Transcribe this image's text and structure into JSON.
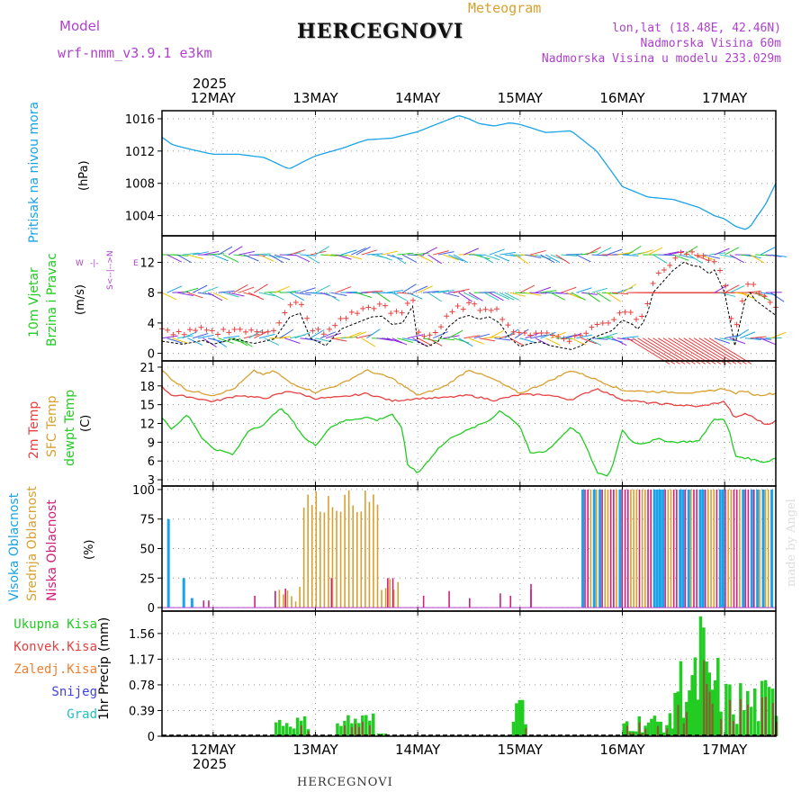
{
  "header": {
    "model_label": "Model",
    "model_name": "wrf-nmm_v3.9.1 e3km",
    "title": "HERCEGNOVI",
    "subtitle": "Meteogram",
    "coords": "lon,lat (18.48E, 42.46N)",
    "altitude": "Nadmorska Visina 60m",
    "model_altitude": "Nadmorska Visina u modelu 233.029m",
    "footer_title": "HERCEGNOVI",
    "credit": "made by Angel",
    "year": "2025"
  },
  "colors": {
    "pressure": "#1aa3e8",
    "wind_speed": "#000000",
    "t2m": "#e84040",
    "sfc": "#d8a030",
    "dewpt": "#22cc22",
    "cloud_high": "#1aa3e8",
    "cloud_mid": "#d8a030",
    "cloud_low": "#d0207a",
    "precip_total": "#22cc22",
    "precip_conv": "#e84040",
    "precip_frozen": "#f08030",
    "precip_snow": "#4040e0",
    "precip_hail": "#20c0c0",
    "wind_panel_label": "#22cc22",
    "compass": "#b040d0"
  },
  "chart_data": {
    "type": "meteogram",
    "time_axis": {
      "unit": "day",
      "start": 11.5,
      "end": 17.5,
      "day_labels": [
        "12MAY",
        "13MAY",
        "14MAY",
        "15MAY",
        "16MAY",
        "17MAY"
      ],
      "day_positions": [
        12,
        13,
        14,
        15,
        16,
        17
      ]
    },
    "panels": [
      {
        "id": "pressure",
        "ylabel": "Pritisak na nivou mora",
        "unit": "(hPa)",
        "yticks": [
          1004,
          1008,
          1012,
          1016
        ],
        "ylim": [
          1001.5,
          1017
        ],
        "series": [
          {
            "name": "MSLP",
            "x": [
              11.5,
              11.6,
              11.75,
              12,
              12.25,
              12.5,
              12.7,
              12.75,
              12.9,
              13,
              13.25,
              13.5,
              13.75,
              14,
              14.2,
              14.4,
              14.5,
              14.6,
              14.75,
              14.9,
              15,
              15.25,
              15.5,
              15.75,
              16,
              16.25,
              16.5,
              16.75,
              16.9,
              17,
              17.1,
              17.2,
              17.25,
              17.3,
              17.4,
              17.5
            ],
            "values": [
              1013.7,
              1012.8,
              1012.3,
              1011.6,
              1011.6,
              1011.2,
              1010.0,
              1009.8,
              1010.8,
              1011.4,
              1012.3,
              1013.4,
              1013.6,
              1014.4,
              1015.4,
              1016.4,
              1016.0,
              1015.4,
              1015.1,
              1015.5,
              1015.3,
              1014.3,
              1014.5,
              1012.0,
              1007.6,
              1006.3,
              1006.0,
              1005.0,
              1004.0,
              1003.6,
              1002.7,
              1002.3,
              1002.6,
              1003.6,
              1005.4,
              1008.0
            ]
          }
        ]
      },
      {
        "id": "wind",
        "ylabel": [
          "10m Vjetar",
          "Brzina i Pravac"
        ],
        "unit": "(m/s)",
        "compass_labels": {
          "n": "N",
          "s": "S",
          "e": "E",
          "w": "W"
        },
        "yticks": [
          0,
          4,
          8,
          12
        ],
        "ylim": [
          -1,
          15.5
        ],
        "series": [
          {
            "name": "speed",
            "x": [
              11.5,
              11.7,
              11.9,
              12.0,
              12.2,
              12.4,
              12.6,
              12.75,
              12.85,
              12.95,
              13.1,
              13.25,
              13.4,
              13.55,
              13.65,
              13.75,
              13.85,
              13.95,
              14.0,
              14.1,
              14.2,
              14.3,
              14.4,
              14.5,
              14.6,
              14.7,
              14.8,
              14.9,
              15.0,
              15.1,
              15.2,
              15.3,
              15.5,
              15.6,
              15.7,
              15.8,
              15.9,
              16.0,
              16.1,
              16.15,
              16.2,
              16.25,
              16.3,
              16.4,
              16.5,
              16.6,
              16.7,
              16.75,
              16.8,
              16.85,
              16.9,
              17.0,
              17.1,
              17.2,
              17.25,
              17.3,
              17.4,
              17.5
            ],
            "values": [
              1.6,
              1.2,
              1.7,
              1.2,
              1.9,
              1.3,
              1.9,
              4.8,
              5.3,
              2.0,
              1.0,
              3.2,
              4.0,
              4.8,
              4.9,
              3.8,
              4.0,
              6.2,
              1.5,
              0.9,
              1.6,
              3.5,
              4.6,
              5.0,
              4.5,
              4.8,
              4.0,
              2.0,
              0.9,
              1.3,
              1.5,
              1.0,
              0.5,
              1.0,
              2.0,
              2.5,
              3.0,
              4.4,
              3.8,
              3.2,
              4.0,
              5.5,
              8.0,
              9.5,
              11.0,
              12.0,
              11.5,
              11.5,
              11.0,
              10.5,
              11.0,
              8.0,
              1.0,
              7.0,
              8.0,
              7.0,
              6.0,
              5.0
            ]
          }
        ]
      },
      {
        "id": "temperature",
        "ylabel": [
          "2m Temp",
          "SFC Temp",
          "dewpt Temp"
        ],
        "unit": "(C)",
        "yticks": [
          3,
          6,
          9,
          12,
          15,
          18,
          21
        ],
        "ylim": [
          2,
          22
        ],
        "series": [
          {
            "name": "2m Temp",
            "x": [
              11.5,
              11.6,
              11.75,
              12.0,
              12.25,
              12.5,
              12.75,
              13.0,
              13.25,
              13.5,
              13.75,
              14.0,
              14.25,
              14.5,
              14.75,
              15.0,
              15.25,
              15.5,
              15.75,
              16.0,
              16.25,
              16.5,
              16.75,
              17.0,
              17.1,
              17.2,
              17.3,
              17.4,
              17.5
            ],
            "values": [
              17.8,
              16.5,
              16.3,
              15.5,
              16.5,
              16.0,
              17.2,
              16.0,
              16.2,
              16.8,
              15.6,
              16.0,
              16.1,
              16.5,
              15.7,
              16.6,
              16.6,
              15.8,
              17.6,
              15.8,
              15.3,
              15.0,
              14.7,
              15.5,
              12.8,
              13.6,
              12.8,
              11.8,
              12.4
            ]
          },
          {
            "name": "SFC Temp",
            "x": [
              11.5,
              11.6,
              11.75,
              12.0,
              12.2,
              12.4,
              12.5,
              12.6,
              12.75,
              13.0,
              13.25,
              13.5,
              13.75,
              14.0,
              14.25,
              14.5,
              14.75,
              15.0,
              15.25,
              15.5,
              15.75,
              16.0,
              16.25,
              16.5,
              16.75,
              17.0,
              17.1,
              17.2,
              17.3,
              17.5
            ],
            "values": [
              20.5,
              19.0,
              17.3,
              16.5,
              17.5,
              20.4,
              19.8,
              20.4,
              18.5,
              17.0,
              18.3,
              20.5,
              19.2,
              16.5,
              17.8,
              20.6,
              19.0,
              16.8,
              18.5,
              20.5,
              19.0,
              17.3,
              17.1,
              17.0,
              16.9,
              17.6,
              16.8,
              17.2,
              16.5,
              16.8
            ]
          },
          {
            "name": "dewpt",
            "x": [
              11.5,
              11.6,
              11.75,
              11.9,
              12.0,
              12.2,
              12.35,
              12.5,
              12.65,
              12.75,
              12.9,
              13.0,
              13.15,
              13.3,
              13.5,
              13.6,
              13.75,
              13.85,
              13.9,
              14.0,
              14.2,
              14.35,
              14.5,
              14.7,
              14.8,
              14.9,
              15.0,
              15.1,
              15.25,
              15.35,
              15.5,
              15.6,
              15.75,
              15.85,
              15.9,
              16.0,
              16.1,
              16.2,
              16.35,
              16.5,
              16.75,
              16.9,
              17.0,
              17.05,
              17.1,
              17.2,
              17.4,
              17.5
            ],
            "values": [
              13.0,
              11.0,
              13.5,
              9.5,
              8.0,
              7.0,
              11.0,
              11.8,
              14.5,
              13.0,
              9.5,
              8.5,
              11.5,
              12.5,
              13.0,
              12.5,
              13.5,
              11.0,
              5.5,
              4.0,
              8.0,
              10.0,
              11.0,
              12.5,
              14.0,
              13.0,
              11.5,
              7.2,
              7.5,
              9.0,
              11.5,
              10.0,
              4.2,
              3.5,
              5.0,
              11.0,
              9.0,
              8.8,
              9.5,
              9.0,
              9.2,
              12.8,
              12.5,
              10.5,
              6.8,
              6.5,
              5.8,
              6.5
            ]
          }
        ]
      },
      {
        "id": "clouds",
        "ylabel": [
          "Visoka Oblacnost",
          "Srednja Oblacnost",
          "Niska Oblacnost"
        ],
        "unit": "(%)",
        "yticks": [
          0,
          25,
          50,
          75,
          100
        ],
        "ylim": [
          -3,
          103
        ]
      },
      {
        "id": "precip",
        "ylabel": "1hr Precip",
        "unit": "(mm)",
        "yticks": [
          0,
          0.39,
          0.78,
          1.17,
          1.56
        ],
        "ylim": [
          0,
          1.9
        ],
        "legend": [
          "Ukupna Kisa",
          "Konvek.Kisa",
          "Zaledj.Kisa",
          "Snijeg",
          "Grad"
        ]
      }
    ]
  }
}
